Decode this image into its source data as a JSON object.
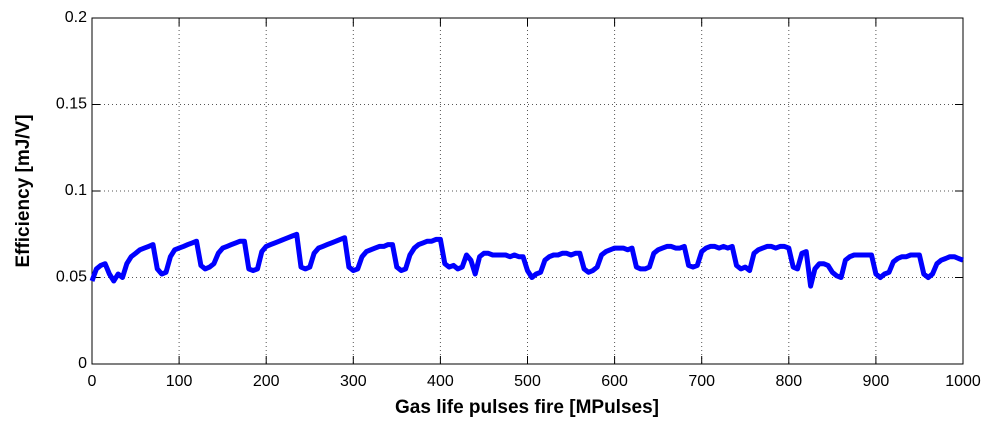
{
  "chart_data": {
    "type": "line",
    "xlabel": "Gas life pulses fire [MPulses]",
    "ylabel": "Efficiency [mJ/V]",
    "xlim": [
      0,
      1000
    ],
    "ylim": [
      0,
      0.2
    ],
    "xticks": [
      0,
      100,
      200,
      300,
      400,
      500,
      600,
      700,
      800,
      900,
      1000
    ],
    "yticks": [
      0,
      0.05,
      0.1,
      0.15,
      0.2
    ],
    "grid": true,
    "x": [
      0,
      5,
      10,
      15,
      20,
      25,
      30,
      35,
      40,
      45,
      50,
      55,
      60,
      65,
      70,
      75,
      80,
      85,
      90,
      95,
      100,
      105,
      110,
      115,
      120,
      125,
      130,
      135,
      140,
      145,
      150,
      155,
      160,
      165,
      170,
      175,
      180,
      185,
      190,
      195,
      200,
      205,
      210,
      215,
      220,
      225,
      230,
      235,
      240,
      245,
      250,
      255,
      260,
      265,
      270,
      275,
      280,
      285,
      290,
      295,
      300,
      305,
      310,
      315,
      320,
      325,
      330,
      335,
      340,
      345,
      350,
      355,
      360,
      365,
      370,
      375,
      380,
      385,
      390,
      395,
      400,
      405,
      410,
      415,
      420,
      425,
      430,
      435,
      440,
      445,
      450,
      455,
      460,
      465,
      470,
      475,
      480,
      485,
      490,
      495,
      500,
      505,
      510,
      515,
      520,
      525,
      530,
      535,
      540,
      545,
      550,
      555,
      560,
      565,
      570,
      575,
      580,
      585,
      590,
      595,
      600,
      605,
      610,
      615,
      620,
      625,
      630,
      635,
      640,
      645,
      650,
      655,
      660,
      665,
      670,
      675,
      680,
      685,
      690,
      695,
      700,
      705,
      710,
      715,
      720,
      725,
      730,
      735,
      740,
      745,
      750,
      755,
      760,
      765,
      770,
      775,
      780,
      785,
      790,
      795,
      800,
      805,
      810,
      815,
      820,
      825,
      830,
      835,
      840,
      845,
      850,
      855,
      860,
      865,
      870,
      875,
      880,
      885,
      890,
      895,
      900,
      905,
      910,
      915,
      920,
      925,
      930,
      935,
      940,
      945,
      950,
      955,
      960,
      965,
      970,
      975,
      980,
      985,
      990,
      995,
      1000
    ],
    "series": [
      {
        "name": "Efficiency",
        "color": "#0000ff",
        "values": [
          0.048,
          0.055,
          0.057,
          0.058,
          0.052,
          0.048,
          0.052,
          0.05,
          0.058,
          0.062,
          0.064,
          0.066,
          0.067,
          0.068,
          0.069,
          0.055,
          0.052,
          0.053,
          0.062,
          0.066,
          0.067,
          0.068,
          0.069,
          0.07,
          0.071,
          0.057,
          0.055,
          0.056,
          0.058,
          0.064,
          0.067,
          0.068,
          0.069,
          0.07,
          0.071,
          0.071,
          0.055,
          0.054,
          0.055,
          0.065,
          0.068,
          0.069,
          0.07,
          0.071,
          0.072,
          0.073,
          0.074,
          0.075,
          0.056,
          0.055,
          0.056,
          0.064,
          0.067,
          0.068,
          0.069,
          0.07,
          0.071,
          0.072,
          0.073,
          0.056,
          0.054,
          0.055,
          0.062,
          0.065,
          0.066,
          0.067,
          0.068,
          0.068,
          0.069,
          0.069,
          0.056,
          0.054,
          0.055,
          0.063,
          0.067,
          0.069,
          0.07,
          0.071,
          0.071,
          0.072,
          0.072,
          0.058,
          0.056,
          0.057,
          0.055,
          0.056,
          0.063,
          0.06,
          0.052,
          0.062,
          0.064,
          0.064,
          0.063,
          0.063,
          0.063,
          0.063,
          0.062,
          0.063,
          0.062,
          0.062,
          0.054,
          0.05,
          0.052,
          0.053,
          0.06,
          0.062,
          0.063,
          0.063,
          0.064,
          0.064,
          0.063,
          0.064,
          0.064,
          0.055,
          0.053,
          0.054,
          0.056,
          0.063,
          0.065,
          0.066,
          0.067,
          0.067,
          0.067,
          0.066,
          0.067,
          0.056,
          0.055,
          0.055,
          0.056,
          0.064,
          0.066,
          0.067,
          0.068,
          0.068,
          0.067,
          0.067,
          0.068,
          0.057,
          0.056,
          0.057,
          0.065,
          0.067,
          0.068,
          0.068,
          0.067,
          0.068,
          0.067,
          0.068,
          0.057,
          0.055,
          0.056,
          0.054,
          0.064,
          0.066,
          0.067,
          0.068,
          0.068,
          0.067,
          0.068,
          0.068,
          0.067,
          0.056,
          0.055,
          0.064,
          0.065,
          0.045,
          0.055,
          0.058,
          0.058,
          0.057,
          0.053,
          0.051,
          0.05,
          0.06,
          0.062,
          0.063,
          0.063,
          0.063,
          0.063,
          0.063,
          0.052,
          0.05,
          0.052,
          0.053,
          0.059,
          0.061,
          0.062,
          0.062,
          0.063,
          0.063,
          0.063,
          0.052,
          0.05,
          0.052,
          0.058,
          0.06,
          0.061,
          0.062,
          0.062,
          0.061,
          0.06
        ]
      }
    ]
  }
}
